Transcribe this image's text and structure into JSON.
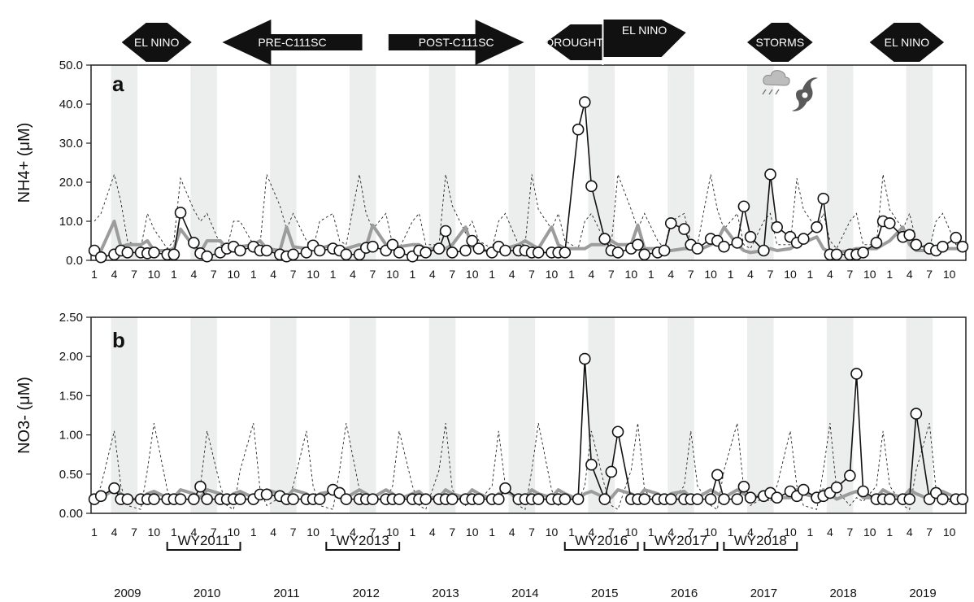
{
  "events": [
    {
      "label": "EL NINO",
      "start": 3.5,
      "end": 11.5,
      "shape": "double"
    },
    {
      "label": "PRE-C111SC",
      "start": 15,
      "end": 31,
      "shape": "left"
    },
    {
      "label": "POST-C111SC",
      "start": 34,
      "end": 49.5,
      "shape": "right"
    },
    {
      "label": "DROUGHT",
      "start": 52,
      "end": 58.5,
      "shape": "left-half"
    },
    {
      "label": "EL NINO",
      "start": 58.5,
      "end": 68,
      "shape": "right-half"
    },
    {
      "label": "STORMS",
      "start": 75,
      "end": 82.5,
      "shape": "double"
    },
    {
      "label": "EL NINO",
      "start": 89,
      "end": 97.5,
      "shape": "double"
    }
  ],
  "chart_data": [
    {
      "type": "line",
      "panel_label": "a",
      "ylabel": "NH4+ (μM)",
      "ylim": [
        0,
        50
      ],
      "yticks": [
        "0.0",
        "10.0",
        "20.0",
        "30.0",
        "40.0",
        "50.0"
      ],
      "x_tick_months": [
        "1",
        "4",
        "7",
        "10"
      ],
      "series": [
        {
          "values": [
            2.5,
            0.8,
            1.5,
            2.5,
            2.0,
            2.0,
            1.8,
            2.0,
            1.5,
            1.5,
            12.2,
            4.5,
            1.8,
            1.0,
            2.0,
            3.0,
            3.5,
            2.5,
            3.5,
            2.5,
            2.5,
            1.5,
            1.0,
            1.5,
            2.0,
            3.8,
            2.5,
            3.0,
            2.5,
            1.5,
            1.5,
            3.2,
            3.5,
            2.5,
            4.0,
            2.0,
            1.0,
            2.5,
            2.0,
            3.0,
            7.5,
            2.0,
            2.5,
            5.0,
            3.0,
            2.0,
            3.5,
            2.5,
            2.5,
            2.5,
            2.0,
            2.0,
            2.0,
            2.0,
            2.0,
            33.5,
            40.5,
            19.0,
            5.5,
            2.5,
            2.0,
            3.0,
            4.0,
            1.5,
            2.0,
            2.5,
            9.5,
            8.0,
            4.0,
            3.0,
            5.5,
            5.0,
            3.5,
            4.5,
            13.8,
            6.0,
            2.5,
            22.0,
            8.5,
            6.0,
            4.5,
            5.5,
            8.5,
            15.8,
            1.5,
            1.5,
            1.5,
            1.5,
            2.0,
            4.5,
            10.0,
            9.5,
            6.0,
            6.5,
            4.0,
            3.0,
            2.5,
            3.5,
            5.8,
            3.5
          ]
        },
        {
          "values": [
            2.5,
            2.5,
            10,
            3.5,
            4,
            4,
            5,
            2.5,
            2.5,
            3,
            8,
            3.5,
            2,
            5,
            5,
            3,
            2.5,
            3.5,
            4,
            5,
            3,
            2.5,
            8.5,
            3.5,
            3,
            3,
            3,
            4,
            3,
            3,
            4,
            3.5,
            9,
            4,
            3.5,
            3.5,
            4,
            4,
            3,
            3,
            3,
            4,
            8.5,
            3.5,
            3,
            2,
            3,
            3,
            4,
            5,
            4,
            3,
            8.5,
            4,
            3,
            3,
            3,
            4,
            4,
            5,
            4,
            4,
            9,
            3,
            3,
            3,
            2.5,
            3,
            3,
            2.5,
            4,
            5,
            8.5,
            4,
            2.5,
            2,
            2.5,
            3,
            2.5,
            3,
            4,
            4.5,
            6,
            3,
            2,
            2,
            2.5,
            3,
            3,
            3,
            4,
            5,
            8.5,
            4,
            2.5,
            2.5,
            3,
            3,
            3,
            3
          ]
        },
        {
          "values": [
            10,
            12,
            22,
            15,
            5,
            3,
            12,
            8,
            3,
            5,
            21,
            13,
            10,
            12,
            4,
            3,
            10,
            10,
            4,
            4,
            22,
            14,
            8,
            12,
            5,
            3,
            10,
            12,
            5,
            4,
            22,
            12,
            8,
            12,
            4,
            3,
            10,
            12,
            4,
            4,
            22,
            14,
            7,
            10,
            5,
            3,
            10,
            12,
            4,
            4,
            22,
            13,
            8,
            12,
            5,
            3,
            10,
            12,
            5,
            4,
            22,
            13,
            8,
            12,
            5,
            3,
            10,
            12,
            4,
            4,
            22,
            13,
            8,
            12,
            4,
            3,
            10,
            12,
            4,
            4,
            21,
            13,
            8,
            12,
            5,
            3,
            10,
            12,
            4,
            4,
            22,
            13,
            8,
            12,
            5,
            3,
            10,
            12,
            4,
            4
          ]
        }
      ]
    },
    {
      "type": "line",
      "panel_label": "b",
      "ylabel": "NO3- (μM)",
      "ylim": [
        0,
        2.5
      ],
      "yticks": [
        "0.00",
        "0.50",
        "1.00",
        "1.50",
        "2.00",
        "2.50"
      ],
      "x_tick_months": [
        "1",
        "4",
        "7",
        "10"
      ],
      "series": [
        {
          "values": [
            0.18,
            0.22,
            0.32,
            0.18,
            0.18,
            0.18,
            0.18,
            0.18,
            0.18,
            0.18,
            0.18,
            0.18,
            0.34,
            0.18,
            0.18,
            0.18,
            0.18,
            0.18,
            0.18,
            0.24,
            0.24,
            0.22,
            0.18,
            0.18,
            0.18,
            0.18,
            0.18,
            0.3,
            0.26,
            0.18,
            0.18,
            0.18,
            0.18,
            0.18,
            0.18,
            0.18,
            0.18,
            0.18,
            0.18,
            0.18,
            0.18,
            0.18,
            0.18,
            0.18,
            0.18,
            0.18,
            0.18,
            0.32,
            0.18,
            0.18,
            0.18,
            0.18,
            0.18,
            0.18,
            0.18,
            0.18,
            1.97,
            0.62,
            0.18,
            0.53,
            1.04,
            0.18,
            0.18,
            0.18,
            0.18,
            0.18,
            0.18,
            0.18,
            0.18,
            0.18,
            0.18,
            0.49,
            0.18,
            0.18,
            0.34,
            0.2,
            0.22,
            0.26,
            0.2,
            0.28,
            0.22,
            0.3,
            0.2,
            0.22,
            0.26,
            0.33,
            0.48,
            1.78,
            0.28,
            0.18,
            0.18,
            0.18,
            0.18,
            0.18,
            1.27,
            0.18,
            0.26,
            0.18,
            0.18,
            0.18
          ]
        },
        {
          "values": [
            0.22,
            0.2,
            0.3,
            0.25,
            0.18,
            0.18,
            0.25,
            0.28,
            0.2,
            0.2,
            0.3,
            0.25,
            0.2,
            0.3,
            0.25,
            0.18,
            0.25,
            0.28,
            0.2,
            0.2,
            0.3,
            0.25,
            0.2,
            0.3,
            0.25,
            0.18,
            0.25,
            0.28,
            0.2,
            0.2,
            0.3,
            0.25,
            0.2,
            0.3,
            0.25,
            0.18,
            0.25,
            0.28,
            0.2,
            0.2,
            0.3,
            0.25,
            0.2,
            0.3,
            0.25,
            0.18,
            0.25,
            0.28,
            0.2,
            0.2,
            0.3,
            0.25,
            0.2,
            0.3,
            0.25,
            0.18,
            0.25,
            0.28,
            0.2,
            0.2,
            0.3,
            0.25,
            0.2,
            0.3,
            0.25,
            0.18,
            0.25,
            0.28,
            0.2,
            0.2,
            0.3,
            0.25,
            0.2,
            0.3,
            0.25,
            0.18,
            0.25,
            0.28,
            0.2,
            0.2,
            0.3,
            0.25,
            0.2,
            0.3,
            0.25,
            0.18,
            0.25,
            0.28,
            0.2,
            0.2,
            0.3,
            0.25,
            0.2,
            0.3,
            0.25,
            0.18,
            0.25,
            0.28,
            0.2,
            0.2
          ]
        },
        {
          "values": [
            0.15,
            0.35,
            1.05,
            0.35,
            0.1,
            0.05,
            0.55,
            1.15,
            0.3,
            0.1,
            0.2,
            0.15,
            0.35,
            1.05,
            0.35,
            0.1,
            0.05,
            0.55,
            1.15,
            0.3,
            0.1,
            0.2,
            0.15,
            0.35,
            1.05,
            0.35,
            0.1,
            0.05,
            0.55,
            1.15,
            0.3,
            0.1,
            0.2,
            0.15,
            0.35,
            1.05,
            0.35,
            0.1,
            0.05,
            0.55,
            1.15,
            0.3,
            0.1,
            0.2,
            0.15,
            0.35,
            1.05,
            0.35,
            0.1,
            0.05,
            0.55,
            1.15,
            0.3,
            0.1,
            0.2,
            0.15,
            0.35,
            1.05,
            0.35,
            0.1,
            0.05,
            0.55,
            1.15,
            0.3,
            0.1,
            0.2,
            0.15,
            0.35,
            1.05,
            0.35,
            0.1,
            0.05,
            0.55,
            1.15,
            0.3,
            0.1,
            0.2,
            0.15,
            0.35,
            1.05,
            0.35,
            0.1,
            0.05,
            0.55,
            1.15,
            0.3,
            0.1,
            0.2,
            0.15,
            0.35,
            1.05,
            0.35,
            0.1,
            0.05,
            0.55,
            1.15,
            0.3,
            0.1,
            0.2,
            0.15
          ]
        }
      ]
    }
  ],
  "years": [
    "2009",
    "2010",
    "2011",
    "2012",
    "2013",
    "2014",
    "2015",
    "2016",
    "2017",
    "2018",
    "2019"
  ],
  "water_years": [
    {
      "label": "WY2011",
      "start": 11,
      "end": 23
    },
    {
      "label": "WY2013",
      "start": 35,
      "end": 47
    },
    {
      "label": "WY2016",
      "start": 71,
      "end": 83
    },
    {
      "label": "WY2017",
      "start": 83,
      "end": 95
    },
    {
      "label": "WY2018",
      "start": 95,
      "end": 107
    }
  ]
}
